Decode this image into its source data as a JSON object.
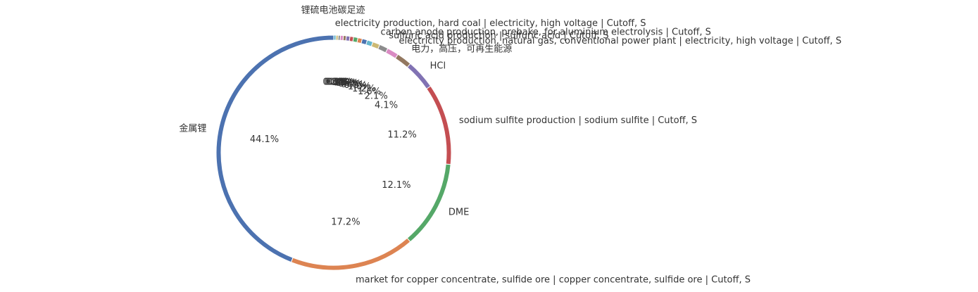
{
  "chart_data": {
    "type": "pie",
    "title": "锂硫电池碳足迹",
    "categories": [
      "金属锂",
      "market for copper concentrate, sulfide ore | copper concentrate, sulfide ore | Cutoff, S",
      "DME",
      "sodium sulfite production | sodium sulfite | Cutoff, S",
      "HCl",
      "电力，高压，可再生能源",
      "electricity production, natural gas, conventional power plant | electricity, high voltage | Cutoff, S",
      "sulfuric acid production | sulfuric acid | Cutoff, S",
      "carbon anode production, prebake, for aluminium electrolysis | Cutoff, S",
      null,
      null,
      null,
      null,
      null,
      null,
      null,
      null,
      null,
      null,
      "electricity production, hard coal | electricity, high voltage | Cutoff, S"
    ],
    "values": [
      44.1,
      17.2,
      12.1,
      11.2,
      4.1,
      2.1,
      1.6,
      1.2,
      1.0,
      0.8,
      0.7,
      0.6,
      0.6,
      0.5,
      0.5,
      0.4,
      0.4,
      0.3,
      0.3,
      0.3
    ],
    "value_labels": [
      "44.1%",
      "17.2%",
      "12.1%",
      "11.2%",
      "4.1%",
      "2.1%",
      "1.6%",
      "1.2%",
      "1.0%",
      "0.8%",
      "0.7%",
      "0.6%",
      "0.6%",
      "0.5%",
      "0.5%",
      "0.4%",
      "0.4%",
      "0.3%",
      "0.3%",
      "0.3%"
    ],
    "colors": [
      "#4c72b0",
      "#dd8452",
      "#55a868",
      "#c44e52",
      "#8172b3",
      "#937860",
      "#da8bc3",
      "#8c8c8c",
      "#ccb974",
      "#64b5cd",
      "#4c72b0",
      "#dd8452",
      "#55a868",
      "#c44e52",
      "#8172b3",
      "#937860",
      "#da8bc3",
      "#8c8c8c",
      "#ccb974",
      "#64b5cd"
    ]
  }
}
